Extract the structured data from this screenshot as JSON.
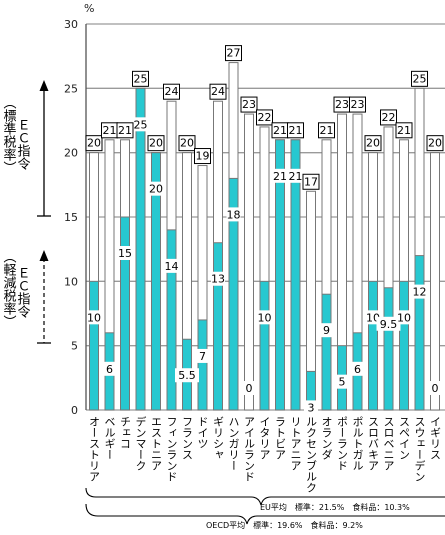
{
  "chart_data": {
    "type": "bar",
    "unit_label": "%",
    "ylim": [
      0,
      30
    ],
    "yticks": [
      0,
      5,
      10,
      15,
      20,
      25,
      30
    ],
    "categories": [
      "オーストリア",
      "ベルギー",
      "チェコ",
      "デンマーク",
      "エストニア",
      "フィンランド",
      "フランス",
      "ドイツ",
      "ギリシャ",
      "ハンガリー",
      "アイルランド",
      "イタリア",
      "ラトビア",
      "リトアニア",
      "ルクセンブルク",
      "オランダ",
      "ポーランド",
      "ポルトガル",
      "スロバキア",
      "スロベニア",
      "スペイン",
      "スウェーデン",
      "イギリス"
    ],
    "series": [
      {
        "values": [
          20,
          21,
          21,
          25,
          20,
          24,
          20,
          19,
          24,
          27,
          23,
          22,
          21,
          21,
          17,
          21,
          23,
          23,
          20,
          22,
          21,
          25,
          20
        ],
        "labels": [
          "20",
          "21",
          "21",
          "25",
          "20",
          "24",
          "20",
          "19",
          "24",
          "27",
          "23",
          "22",
          "21",
          "21",
          "17",
          "21",
          "23",
          "23",
          "20",
          "22",
          "21",
          "25",
          "20"
        ]
      },
      {
        "values": [
          10,
          6,
          15,
          25,
          20,
          14,
          5.5,
          7,
          13,
          18,
          0,
          10,
          21,
          21,
          3,
          9,
          5,
          6,
          10,
          9.5,
          10,
          12,
          0
        ],
        "labels": [
          "10",
          "6",
          "15",
          "25",
          "20",
          "14",
          "5.5",
          "7",
          "13",
          "18",
          "0",
          "10",
          "21",
          "21",
          "3",
          "9",
          "5",
          "6",
          "10",
          "9.5",
          "10",
          "12",
          "0"
        ]
      }
    ],
    "left_labels": {
      "standard": "（標準税率）ＥＣ指令",
      "reduced": "（軽減税率）ＥＣ指令"
    },
    "footnotes": {
      "eu": "EU平均　標準：21.5%　食料品：10.3%",
      "oecd": "OECD平均　標準：19.6%　食料品：9.2%"
    },
    "colors": {
      "standard_bar": "#ffffff",
      "reduced_bar": "#27c8d0",
      "bar_stroke": "#777777",
      "grid": "#9a9a9a"
    }
  }
}
